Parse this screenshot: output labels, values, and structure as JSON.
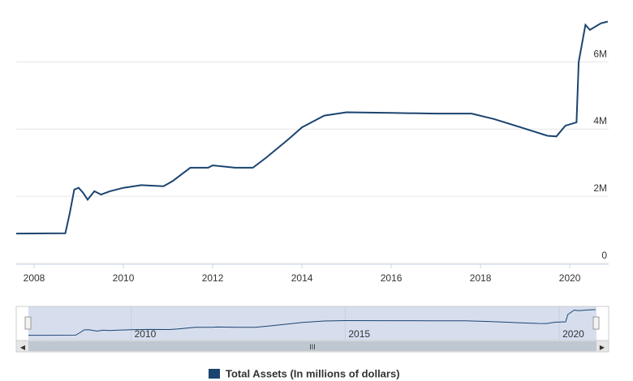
{
  "chart_data": {
    "type": "line",
    "x": [
      2007.6,
      2008.7,
      2008.8,
      2008.9,
      2009.0,
      2009.1,
      2009.2,
      2009.35,
      2009.5,
      2009.7,
      2010.0,
      2010.4,
      2010.9,
      2011.1,
      2011.5,
      2011.9,
      2012.0,
      2012.5,
      2012.9,
      2013.2,
      2013.7,
      2014.0,
      2014.5,
      2015.0,
      2016.0,
      2017.0,
      2017.8,
      2018.3,
      2018.9,
      2019.5,
      2019.7,
      2019.9,
      2020.15,
      2020.2,
      2020.35,
      2020.45,
      2020.7,
      2020.85
    ],
    "series": [
      {
        "name": "Total Assets (In millions of dollars)",
        "color": "#1b4470",
        "values": [
          890000,
          900000,
          1500000,
          2200000,
          2250000,
          2100000,
          1900000,
          2150000,
          2050000,
          2150000,
          2250000,
          2330000,
          2300000,
          2450000,
          2850000,
          2850000,
          2920000,
          2850000,
          2850000,
          3150000,
          3700000,
          4050000,
          4400000,
          4500000,
          4480000,
          4460000,
          4460000,
          4300000,
          4050000,
          3800000,
          3780000,
          4100000,
          4200000,
          6000000,
          7100000,
          6950000,
          7150000,
          7200000
        ]
      }
    ],
    "xlim": [
      2007.6,
      2020.87
    ],
    "xticks": [
      2008,
      2010,
      2012,
      2014,
      2016,
      2018,
      2020
    ],
    "ylim": [
      0,
      7600000
    ],
    "yticks": [
      {
        "value": 0,
        "label": "0"
      },
      {
        "value": 2000000,
        "label": "2M"
      },
      {
        "value": 4000000,
        "label": "4M"
      },
      {
        "value": 6000000,
        "label": "6M"
      }
    ],
    "navigator_xticks": [
      2010,
      2015,
      2020
    ],
    "grid": true
  }
}
